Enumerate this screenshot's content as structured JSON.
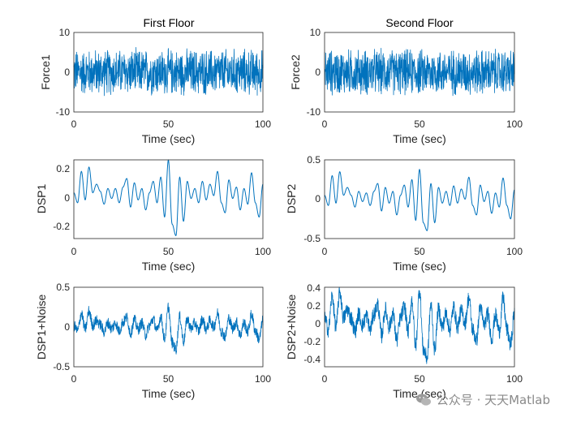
{
  "figure": {
    "background": "#ffffff"
  },
  "watermark": {
    "text": "公众号 · 天天Matlab",
    "icon": "wechat-icon",
    "color": "#8a8a8a"
  },
  "chart_data": [
    {
      "type": "line",
      "title": "First Floor",
      "xlabel": "Time (sec)",
      "ylabel": "Force1",
      "xlim": [
        0,
        100
      ],
      "ylim": [
        -10,
        10
      ],
      "xticks": [
        0,
        50,
        100
      ],
      "yticks": [
        -10,
        0,
        10
      ],
      "xtick_labels": [
        "0",
        "50",
        "100"
      ],
      "ytick_labels": [
        "-10",
        "0",
        "10"
      ],
      "signal": "white-noise",
      "envelope": 6.5,
      "series_color": "#0072bd",
      "grid": false
    },
    {
      "type": "line",
      "title": "Second Floor",
      "xlabel": "Time (sec)",
      "ylabel": "Force2",
      "xlim": [
        0,
        100
      ],
      "ylim": [
        -10,
        10
      ],
      "xticks": [
        0,
        50,
        100
      ],
      "yticks": [
        -10,
        0,
        10
      ],
      "xtick_labels": [
        "0",
        "50",
        "100"
      ],
      "ytick_labels": [
        "-10",
        "0",
        "10"
      ],
      "signal": "white-noise",
      "envelope": 6.5,
      "series_color": "#0072bd",
      "grid": false
    },
    {
      "type": "line",
      "title": "",
      "xlabel": "Time (sec)",
      "ylabel": "DSP1",
      "xlim": [
        0,
        100
      ],
      "ylim": [
        -0.3,
        0.25
      ],
      "xticks": [
        0,
        50,
        100
      ],
      "yticks": [
        -0.2,
        0,
        0.2
      ],
      "xtick_labels": [
        "0",
        "50",
        "100"
      ],
      "ytick_labels": [
        "-0.2",
        "0",
        "0.2"
      ],
      "signal": "displacement",
      "series_color": "#0072bd",
      "grid": false,
      "x": [
        0,
        2,
        4,
        6,
        8,
        10,
        12,
        14,
        16,
        18,
        20,
        22,
        24,
        26,
        28,
        30,
        32,
        34,
        36,
        38,
        40,
        42,
        44,
        46,
        48,
        50,
        52,
        54,
        56,
        58,
        60,
        62,
        64,
        66,
        68,
        70,
        72,
        74,
        76,
        78,
        80,
        82,
        84,
        86,
        88,
        90,
        92,
        94,
        96,
        98,
        100
      ],
      "y": [
        0.02,
        -0.05,
        0.17,
        -0.03,
        0.2,
        0.02,
        0.08,
        0.03,
        -0.06,
        0.05,
        -0.02,
        0.05,
        -0.05,
        0.06,
        0.12,
        -0.08,
        0.09,
        -0.03,
        0.05,
        -0.1,
        0.02,
        0.1,
        -0.05,
        0.13,
        -0.15,
        0.25,
        -0.2,
        -0.28,
        0.13,
        -0.18,
        0.1,
        -0.02,
        0.05,
        -0.05,
        0.1,
        -0.03,
        0.08,
        0.0,
        0.17,
        -0.05,
        -0.12,
        0.11,
        -0.02,
        0.06,
        -0.1,
        0.05,
        -0.06,
        0.16,
        -0.05,
        -0.15,
        0.08
      ]
    },
    {
      "type": "line",
      "title": "",
      "xlabel": "Time (sec)",
      "ylabel": "DSP2",
      "xlim": [
        0,
        100
      ],
      "ylim": [
        -0.5,
        0.5
      ],
      "xticks": [
        0,
        50,
        100
      ],
      "yticks": [
        -0.5,
        0,
        0.5
      ],
      "xtick_labels": [
        "0",
        "50",
        "100"
      ],
      "ytick_labels": [
        "-0.5",
        "0",
        "0.5"
      ],
      "signal": "displacement",
      "series_color": "#0072bd",
      "grid": false,
      "x": [
        0,
        2,
        4,
        6,
        8,
        10,
        12,
        14,
        16,
        18,
        20,
        22,
        24,
        26,
        28,
        30,
        32,
        34,
        36,
        38,
        40,
        42,
        44,
        46,
        48,
        50,
        52,
        54,
        56,
        58,
        60,
        62,
        64,
        66,
        68,
        70,
        72,
        74,
        76,
        78,
        80,
        82,
        84,
        86,
        88,
        90,
        92,
        94,
        96,
        98,
        100
      ],
      "y": [
        0.05,
        -0.08,
        0.3,
        -0.05,
        0.35,
        0.05,
        0.15,
        0.05,
        -0.1,
        0.1,
        -0.03,
        0.08,
        -0.08,
        0.1,
        0.2,
        -0.15,
        0.15,
        -0.05,
        0.1,
        -0.2,
        0.05,
        0.18,
        -0.1,
        0.25,
        -0.27,
        0.38,
        -0.3,
        -0.4,
        0.2,
        -0.3,
        0.15,
        -0.05,
        0.1,
        -0.08,
        0.17,
        -0.05,
        0.13,
        0.0,
        0.28,
        -0.08,
        -0.2,
        0.18,
        -0.03,
        0.1,
        -0.18,
        0.08,
        -0.1,
        0.27,
        -0.08,
        -0.25,
        0.12
      ]
    },
    {
      "type": "line",
      "title": "",
      "xlabel": "Time (sec)",
      "ylabel": "DSP1+Noise",
      "xlim": [
        0,
        100
      ],
      "ylim": [
        -0.5,
        0.5
      ],
      "xticks": [
        0,
        50,
        100
      ],
      "yticks": [
        -0.5,
        0,
        0.5
      ],
      "xtick_labels": [
        "0",
        "50",
        "100"
      ],
      "ytick_labels": [
        "-0.5",
        "0",
        "0.5"
      ],
      "signal": "noisy-displacement",
      "base_series": 2,
      "noise_amplitude": 0.07,
      "series_color": "#0072bd",
      "grid": false
    },
    {
      "type": "line",
      "title": "",
      "xlabel": "Time (sec)",
      "ylabel": "DSP2+Noise",
      "xlim": [
        0,
        100
      ],
      "ylim": [
        -0.5,
        0.4
      ],
      "xticks": [
        0,
        50,
        100
      ],
      "yticks": [
        -0.4,
        -0.2,
        0,
        0.2,
        0.4
      ],
      "xtick_labels": [
        "0",
        "50",
        "100"
      ],
      "ytick_labels": [
        "-0.4",
        "-0.2",
        "0",
        "0.2",
        "0.4"
      ],
      "signal": "noisy-displacement",
      "base_series": 3,
      "noise_amplitude": 0.09,
      "series_color": "#0072bd",
      "grid": false
    }
  ]
}
